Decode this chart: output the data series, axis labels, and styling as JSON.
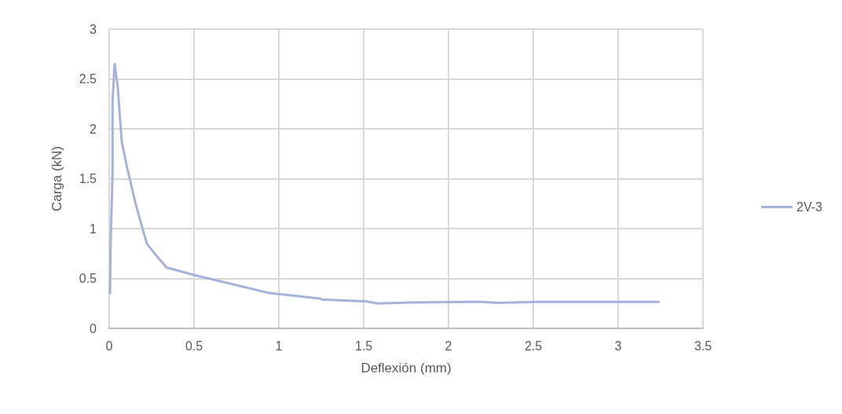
{
  "chart_data": {
    "type": "line",
    "xlabel": "Deflexión (mm)",
    "ylabel": "Carga (kN)",
    "series": [
      {
        "name": "2V-3",
        "color": "#a5b3dc",
        "x": [
          0.005,
          0.009,
          0.02,
          0.02,
          0.032,
          0.05,
          0.074,
          0.106,
          0.157,
          0.222,
          0.268,
          0.338,
          0.5,
          0.944,
          1.24,
          1.255,
          1.52,
          1.58,
          1.78,
          2.13,
          2.19,
          2.29,
          2.52,
          3.24
        ],
        "values": [
          0.35,
          0.87,
          1.56,
          2.29,
          2.65,
          2.43,
          1.87,
          1.61,
          1.24,
          0.85,
          0.75,
          0.61,
          0.535,
          0.354,
          0.3,
          0.29,
          0.27,
          0.25,
          0.26,
          0.265,
          0.265,
          0.255,
          0.265,
          0.265
        ]
      }
    ],
    "xlim": [
      0,
      3.5
    ],
    "xticks": [
      0,
      0.5,
      1,
      1.5,
      2,
      2.5,
      3,
      3.5
    ],
    "ylim": [
      0,
      3
    ],
    "yticks": [
      0,
      0.5,
      1,
      1.5,
      2,
      2.5,
      3
    ],
    "grid": true,
    "legend": "right",
    "marker": "none",
    "line_style": "solid"
  }
}
